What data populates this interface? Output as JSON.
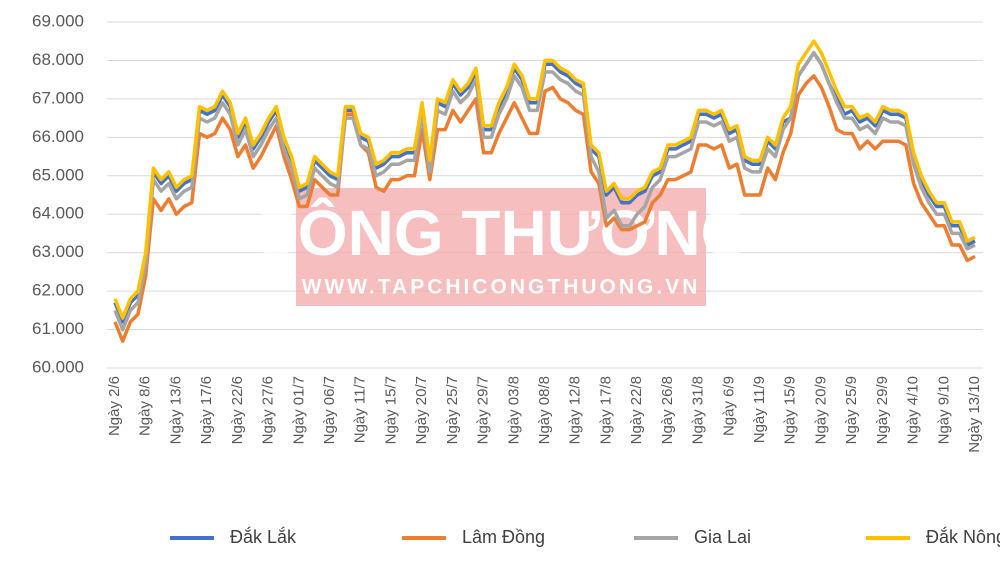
{
  "chart_data": {
    "type": "line",
    "annotations": [
      "CÔNG THƯƠNG",
      "WWW.TAPCHICONGTHUONG.VN"
    ],
    "categories": [
      "Ngày 2/6",
      null,
      null,
      null,
      "Ngày 8/6",
      null,
      null,
      null,
      "Ngày 13/6",
      null,
      null,
      null,
      "Ngày 17/6",
      null,
      null,
      null,
      "Ngày 22/6",
      null,
      null,
      null,
      "Ngày 27/6",
      null,
      null,
      null,
      "Ngày 01/7",
      null,
      null,
      null,
      "Ngày 06/7",
      null,
      null,
      null,
      "Ngày 11/7",
      null,
      null,
      null,
      "Ngày 15/7",
      null,
      null,
      null,
      "Ngày 20/7",
      null,
      null,
      null,
      "Ngày 25/7",
      null,
      null,
      null,
      "Ngày 29/7",
      null,
      null,
      null,
      "Ngày 03/8",
      null,
      null,
      null,
      "Ngày 08/8",
      null,
      null,
      null,
      "Ngày 12/8",
      null,
      null,
      null,
      "Ngày 17/8",
      null,
      null,
      null,
      "Ngày 22/8",
      null,
      null,
      null,
      "Ngày 26/8",
      null,
      null,
      null,
      "Ngày 31/8",
      null,
      null,
      null,
      "Ngày 6/9",
      null,
      null,
      null,
      "Ngày 11/9",
      null,
      null,
      null,
      "Ngày 15/9",
      null,
      null,
      null,
      "Ngày 20/9",
      null,
      null,
      null,
      "Ngày 25/9",
      null,
      null,
      null,
      "Ngày 29/9",
      null,
      null,
      null,
      "Ngày 4/10",
      null,
      null,
      null,
      "Ngày 9/10",
      null,
      null,
      null,
      "Ngày 13/10"
    ],
    "series": [
      {
        "name": "Đắk Lắk",
        "color": "#4472c4",
        "values": [
          61700,
          61200,
          61700,
          61900,
          62900,
          65100,
          64800,
          65000,
          64600,
          64800,
          64900,
          66700,
          66600,
          66700,
          67100,
          66800,
          66000,
          66400,
          65700,
          66000,
          66400,
          66700,
          65900,
          65400,
          64600,
          64700,
          65400,
          65200,
          65000,
          64900,
          66700,
          66700,
          66000,
          65900,
          65200,
          65300,
          65500,
          65500,
          65600,
          65600,
          66800,
          65300,
          66900,
          66800,
          67400,
          67100,
          67300,
          67700,
          66200,
          66200,
          66800,
          67200,
          67800,
          67500,
          66900,
          66900,
          67900,
          67900,
          67700,
          67600,
          67400,
          67300,
          65700,
          65500,
          64500,
          64700,
          64300,
          64300,
          64500,
          64600,
          65000,
          65100,
          65700,
          65700,
          65800,
          65900,
          66600,
          66600,
          66500,
          66600,
          66100,
          66200,
          65400,
          65300,
          65300,
          65900,
          65700,
          66400,
          66500,
          67600,
          67900,
          68200,
          67900,
          67400,
          67000,
          66600,
          66700,
          66400,
          66500,
          66300,
          66700,
          66600,
          66600,
          66500,
          65500,
          64900,
          64500,
          64200,
          64200,
          63700,
          63700,
          63200,
          63300
        ]
      },
      {
        "name": "Lâm Đồng",
        "color": "#ed7d31",
        "values": [
          61200,
          60700,
          61200,
          61400,
          62400,
          64400,
          64100,
          64400,
          64000,
          64200,
          64300,
          66100,
          66000,
          66100,
          66500,
          66200,
          65500,
          65800,
          65200,
          65500,
          65900,
          66300,
          65500,
          64900,
          64200,
          64200,
          64900,
          64700,
          64500,
          64500,
          66600,
          66600,
          65800,
          65600,
          64700,
          64600,
          64900,
          64900,
          65000,
          65000,
          66200,
          64900,
          66200,
          66200,
          66700,
          66400,
          66700,
          67000,
          65600,
          65600,
          66100,
          66500,
          66900,
          66500,
          66100,
          66100,
          67200,
          67300,
          67000,
          66900,
          66700,
          66600,
          65100,
          64800,
          63700,
          63900,
          63600,
          63600,
          63700,
          63800,
          64300,
          64500,
          64900,
          64900,
          65000,
          65100,
          65800,
          65800,
          65700,
          65800,
          65200,
          65300,
          64500,
          64500,
          64500,
          65200,
          64900,
          65600,
          66100,
          67100,
          67400,
          67600,
          67300,
          66800,
          66200,
          66100,
          66100,
          65700,
          65900,
          65700,
          65900,
          65900,
          65900,
          65800,
          64800,
          64300,
          64000,
          63700,
          63700,
          63200,
          63200,
          62800,
          62900
        ]
      },
      {
        "name": "Gia Lai",
        "color": "#a5a5a5",
        "values": [
          61500,
          61000,
          61500,
          61700,
          62700,
          64900,
          64600,
          64800,
          64400,
          64600,
          64700,
          66500,
          66400,
          66500,
          66900,
          66600,
          65800,
          66200,
          65500,
          65800,
          66200,
          66500,
          65700,
          65200,
          64400,
          64500,
          65200,
          65000,
          64800,
          64700,
          66500,
          66500,
          65800,
          65700,
          65000,
          65100,
          65300,
          65300,
          65400,
          65400,
          66600,
          65100,
          66700,
          66600,
          67200,
          66900,
          67100,
          67500,
          66000,
          66000,
          66600,
          67000,
          67600,
          67300,
          66700,
          66700,
          67700,
          67700,
          67500,
          67400,
          67200,
          67100,
          65500,
          65100,
          63900,
          64100,
          63700,
          63700,
          64000,
          64200,
          64700,
          64900,
          65500,
          65500,
          65600,
          65700,
          66400,
          66400,
          66300,
          66400,
          65900,
          66000,
          65200,
          65100,
          65100,
          65700,
          65500,
          66200,
          66500,
          67600,
          67900,
          68200,
          67900,
          67400,
          66900,
          66500,
          66500,
          66200,
          66300,
          66100,
          66500,
          66400,
          66400,
          66300,
          65300,
          64700,
          64300,
          64000,
          64000,
          63500,
          63500,
          63100,
          63200
        ]
      },
      {
        "name": "Đắk Nông",
        "color": "#ffc000",
        "values": [
          61800,
          61300,
          61800,
          62000,
          63000,
          65200,
          64900,
          65100,
          64700,
          64900,
          65000,
          66800,
          66700,
          66800,
          67200,
          66900,
          66100,
          66500,
          65800,
          66100,
          66500,
          66800,
          66000,
          65500,
          64700,
          64800,
          65500,
          65300,
          65100,
          65000,
          66800,
          66800,
          66100,
          66000,
          65300,
          65400,
          65600,
          65600,
          65700,
          65700,
          66900,
          65400,
          67000,
          66900,
          67500,
          67200,
          67400,
          67800,
          66300,
          66300,
          66900,
          67300,
          67900,
          67600,
          67000,
          67000,
          68000,
          68000,
          67800,
          67700,
          67500,
          67400,
          65800,
          65600,
          64600,
          64800,
          64400,
          64400,
          64600,
          64700,
          65100,
          65200,
          65800,
          65800,
          65900,
          66000,
          66700,
          66700,
          66600,
          66700,
          66200,
          66300,
          65500,
          65400,
          65400,
          66000,
          65800,
          66500,
          66800,
          67900,
          68200,
          68500,
          68200,
          67700,
          67200,
          66800,
          66800,
          66500,
          66600,
          66400,
          66800,
          66700,
          66700,
          66600,
          65600,
          65000,
          64600,
          64300,
          64300,
          63800,
          63800,
          63300,
          63400
        ]
      }
    ],
    "ylim": [
      60000,
      69000
    ],
    "yticks": [
      {
        "value": 60000,
        "label": "60.000"
      },
      {
        "value": 61000,
        "label": "61.000"
      },
      {
        "value": 62000,
        "label": "62.000"
      },
      {
        "value": 63000,
        "label": "63.000"
      },
      {
        "value": 64000,
        "label": "64.000"
      },
      {
        "value": 65000,
        "label": "65.000"
      },
      {
        "value": 66000,
        "label": "66.000"
      },
      {
        "value": 67000,
        "label": "67.000"
      },
      {
        "value": 68000,
        "label": "68.000"
      },
      {
        "value": 69000,
        "label": "69.000"
      }
    ],
    "grid": true,
    "legend": "bottom"
  }
}
